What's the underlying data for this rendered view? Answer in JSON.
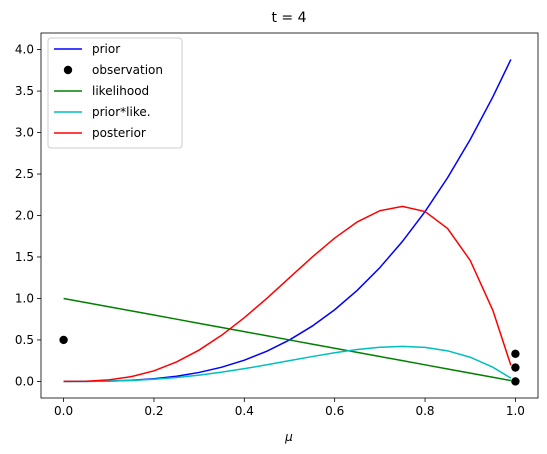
{
  "chart_data": {
    "type": "line",
    "title": "t = 4",
    "xlabel": "μ",
    "ylabel": "",
    "xlim": [
      -0.05,
      1.05
    ],
    "ylim": [
      -0.2,
      4.2
    ],
    "grid": false,
    "legend_position": "top-left",
    "x_ticks": [
      {
        "value": 0.0,
        "label": "0.0"
      },
      {
        "value": 0.2,
        "label": "0.2"
      },
      {
        "value": 0.4,
        "label": "0.4"
      },
      {
        "value": 0.6,
        "label": "0.6"
      },
      {
        "value": 0.8,
        "label": "0.8"
      },
      {
        "value": 1.0,
        "label": "1.0"
      }
    ],
    "y_ticks": [
      {
        "value": 0.0,
        "label": "0.0"
      },
      {
        "value": 0.5,
        "label": "0.5"
      },
      {
        "value": 1.0,
        "label": "1.0"
      },
      {
        "value": 1.5,
        "label": "1.5"
      },
      {
        "value": 2.0,
        "label": "2.0"
      },
      {
        "value": 2.5,
        "label": "2.5"
      },
      {
        "value": 3.0,
        "label": "3.0"
      },
      {
        "value": 3.5,
        "label": "3.5"
      },
      {
        "value": 4.0,
        "label": "4.0"
      }
    ],
    "x": [
      0,
      0.05,
      0.1,
      0.15,
      0.2,
      0.25,
      0.3,
      0.35,
      0.4,
      0.45,
      0.5,
      0.55,
      0.6,
      0.65,
      0.7,
      0.75,
      0.8,
      0.85,
      0.9,
      0.95,
      0.99
    ],
    "series": [
      {
        "name": "prior",
        "kind": "line",
        "color": "#0000ff",
        "values": [
          0.0,
          0.0005,
          0.004,
          0.0135,
          0.032,
          0.0625,
          0.108,
          0.1715,
          0.256,
          0.3645,
          0.5,
          0.6655,
          0.864,
          1.0985,
          1.372,
          1.6875,
          2.048,
          2.4565,
          2.916,
          3.4295,
          3.8812
        ]
      },
      {
        "name": "observation",
        "kind": "points",
        "color": "#000000",
        "points": [
          {
            "x": 0.0,
            "y": 0.5
          },
          {
            "x": 1.0,
            "y": 0.333
          },
          {
            "x": 1.0,
            "y": 0.167
          },
          {
            "x": 1.0,
            "y": 0.0
          }
        ]
      },
      {
        "name": "likelihood",
        "kind": "line",
        "color": "#008000",
        "values": [
          1.0,
          0.95,
          0.9,
          0.85,
          0.8,
          0.75,
          0.7,
          0.65,
          0.6,
          0.55,
          0.5,
          0.45,
          0.4,
          0.35,
          0.3,
          0.25,
          0.2,
          0.15,
          0.1,
          0.05,
          0.01
        ]
      },
      {
        "name": "prior*like.",
        "kind": "line",
        "color": "#00bfbf",
        "values": [
          0.0,
          0.0005,
          0.0036,
          0.0115,
          0.0256,
          0.0469,
          0.0756,
          0.1115,
          0.1536,
          0.2005,
          0.25,
          0.2995,
          0.3456,
          0.3845,
          0.4116,
          0.4219,
          0.4096,
          0.3685,
          0.2916,
          0.1715,
          0.0388
        ]
      },
      {
        "name": "posterior",
        "kind": "line",
        "color": "#ff0000",
        "values": [
          0.0,
          0.0025,
          0.018,
          0.0574,
          0.128,
          0.2344,
          0.378,
          0.5574,
          0.768,
          1.0024,
          1.25,
          1.4974,
          1.728,
          1.9224,
          2.058,
          2.1094,
          2.048,
          1.8424,
          1.458,
          0.8574,
          0.194
        ]
      }
    ]
  }
}
